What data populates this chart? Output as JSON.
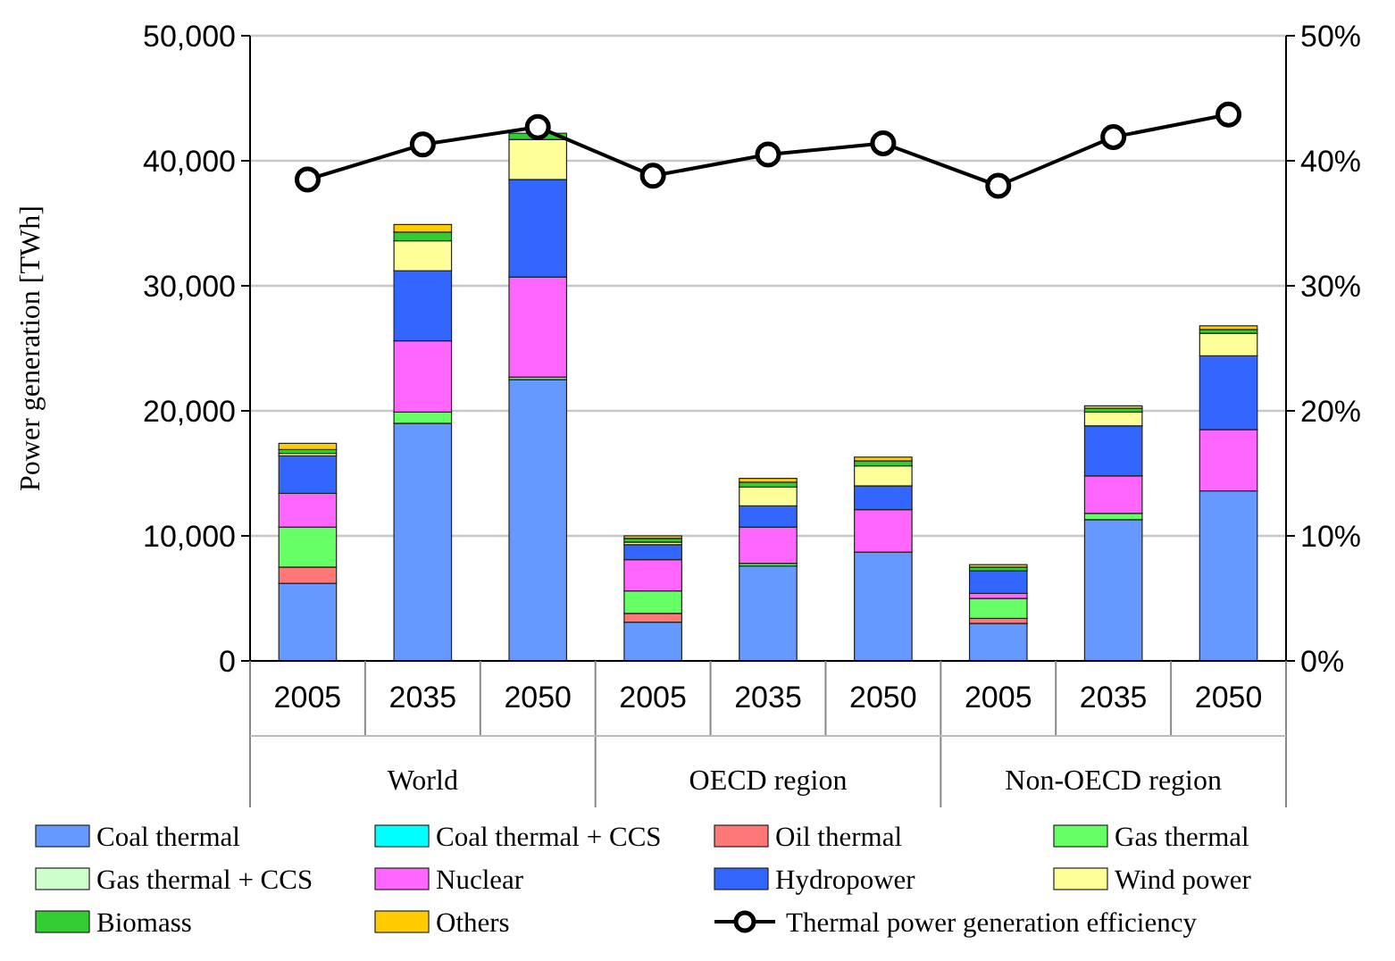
{
  "chart_data": {
    "type": "bar",
    "stacked": true,
    "ylabel": "Power generation [TWh]",
    "categories": [
      "2005",
      "2035",
      "2050",
      "2005",
      "2035",
      "2050",
      "2005",
      "2035",
      "2050"
    ],
    "annotations": [
      "World",
      "OECD region",
      "Non-OECD region"
    ],
    "ylim": [
      0,
      50000
    ],
    "yticks": [
      {
        "value": 0,
        "label": "0"
      },
      {
        "value": 10000,
        "label": "10,000"
      },
      {
        "value": 20000,
        "label": "20,000"
      },
      {
        "value": 30000,
        "label": "30,000"
      },
      {
        "value": 40000,
        "label": "40,000"
      },
      {
        "value": 50000,
        "label": "50,000"
      }
    ],
    "y2lim": [
      0,
      50
    ],
    "y2ticks": [
      {
        "value": 0,
        "label": "0%"
      },
      {
        "value": 10,
        "label": "10%"
      },
      {
        "value": 20,
        "label": "20%"
      },
      {
        "value": 30,
        "label": "30%"
      },
      {
        "value": 40,
        "label": "40%"
      },
      {
        "value": 50,
        "label": "50%"
      }
    ],
    "grid": "y",
    "legend": "bottom",
    "series": [
      {
        "name": "Coal thermal",
        "color": "#6699ff",
        "values": [
          6200,
          19000,
          22500,
          3100,
          7600,
          8700,
          3000,
          11300,
          13600
        ]
      },
      {
        "name": "Coal thermal + CCS",
        "color": "#00ffff",
        "values": [
          0,
          0,
          0,
          0,
          0,
          0,
          0,
          0,
          0
        ]
      },
      {
        "name": "Oil thermal",
        "color": "#ff7777",
        "values": [
          1300,
          0,
          0,
          700,
          0,
          0,
          400,
          0,
          0
        ]
      },
      {
        "name": "Gas thermal",
        "color": "#66ff66",
        "values": [
          3200,
          900,
          200,
          1800,
          200,
          0,
          1600,
          500,
          0
        ]
      },
      {
        "name": "Gas thermal + CCS",
        "color": "#ccffcc",
        "values": [
          0,
          0,
          0,
          0,
          0,
          0,
          0,
          0,
          0
        ]
      },
      {
        "name": "Nuclear",
        "color": "#ff66ff",
        "values": [
          2700,
          5700,
          8000,
          2500,
          2900,
          3400,
          400,
          3000,
          4900
        ]
      },
      {
        "name": "Hydropower",
        "color": "#3366ff",
        "values": [
          3000,
          5600,
          7800,
          1200,
          1700,
          1900,
          1800,
          4000,
          5900
        ]
      },
      {
        "name": "Wind power",
        "color": "#ffff99",
        "values": [
          200,
          2400,
          3200,
          200,
          1500,
          1600,
          0,
          1100,
          1800
        ]
      },
      {
        "name": "Biomass",
        "color": "#33cc33",
        "values": [
          300,
          700,
          500,
          300,
          400,
          400,
          300,
          300,
          300
        ]
      },
      {
        "name": "Others",
        "color": "#ffcc00",
        "values": [
          500,
          600,
          null,
          200,
          300,
          300,
          200,
          200,
          300
        ]
      },
      {
        "name": "Thermal power generation efficiency",
        "type": "line",
        "axis": "y2",
        "color": "#000000",
        "marker": "circle",
        "values": [
          38.5,
          41.3,
          42.7,
          38.8,
          40.5,
          41.4,
          38.0,
          41.9,
          43.7
        ]
      }
    ]
  }
}
